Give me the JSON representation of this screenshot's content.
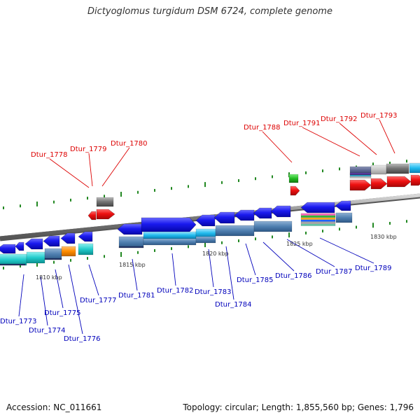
{
  "title": "Dictyoglomus turgidum DSM 6724, complete genome",
  "footer": {
    "accession": "Accession: NC_011661",
    "summary": "Topology: circular; Length: 1,855,560 bp; Genes: 1,796"
  },
  "kbp_labels": [
    "1810 kbp",
    "1815 kbp",
    "1820 kbp",
    "1825 kbp",
    "1830 kbp"
  ],
  "genes_top": [
    "Dtur_1778",
    "Dtur_1779",
    "Dtur_1780",
    "Dtur_1788",
    "Dtur_1791",
    "Dtur_1792",
    "Dtur_1793"
  ],
  "genes_bottom": [
    "Dtur_1773",
    "Dtur_1774",
    "Dtur_1775",
    "Dtur_1776",
    "Dtur_1777",
    "Dtur_1781",
    "Dtur_1782",
    "Dtur_1783",
    "Dtur_1784",
    "Dtur_1785",
    "Dtur_1786",
    "Dtur_1787",
    "Dtur_1789"
  ],
  "colors": {
    "forward_gene": "#1414e6",
    "reverse_gene": "#e61414",
    "backbone": "#888888",
    "label_top": "#dd0000",
    "label_bottom": "#0000bb",
    "tick": "#228822"
  }
}
